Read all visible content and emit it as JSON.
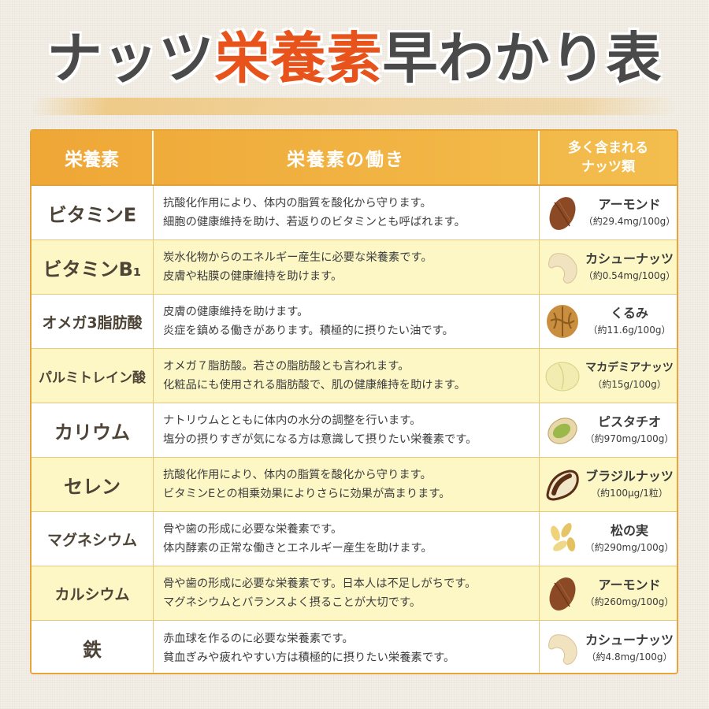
{
  "title": {
    "part1": "ナッツ",
    "part2": "栄養素",
    "part3": "早わかり表"
  },
  "headers": {
    "nutrient": "栄養素",
    "function": "栄養素の働き",
    "nuts_line1": "多く含まれる",
    "nuts_line2": "ナッツ類"
  },
  "rows": [
    {
      "nutrient": "ビタミンE",
      "line1": "抗酸化作用により、体内の脂質を酸化から守ります。",
      "line2": "細胞の健康維持を助け、若返りのビタミンとも呼ばれます。",
      "nut": "アーモンド",
      "amount": "（約29.4mg/100g）",
      "icon": "almond-icon"
    },
    {
      "nutrient": "ビタミンB₁",
      "line1": "炭水化物からのエネルギー産生に必要な栄養素です。",
      "line2": "皮膚や粘膜の健康維持を助けます。",
      "nut": "カシューナッツ",
      "amount": "（約0.54mg/100g）",
      "icon": "cashew-icon"
    },
    {
      "nutrient": "オメガ3脂肪酸",
      "line1": "皮膚の健康維持を助けます。",
      "line2": "炎症を鎮める働きがあります。積極的に摂りたい油です。",
      "nut": "くるみ",
      "amount": "（約11.6g/100g）",
      "icon": "walnut-icon"
    },
    {
      "nutrient": "パルミトレイン酸",
      "line1": "オメガ７脂肪酸。若さの脂肪酸とも言われます。",
      "line2": "化粧品にも使用される脂肪酸で、肌の健康維持を助けます。",
      "nut": "マカデミアナッツ",
      "amount": "（約15g/100g）",
      "icon": "macadamia-icon"
    },
    {
      "nutrient": "カリウム",
      "line1": "ナトリウムとともに体内の水分の調整を行います。",
      "line2": "塩分の摂りすぎが気になる方は意識して摂りたい栄養素です。",
      "nut": "ピスタチオ",
      "amount": "（約970mg/100g）",
      "icon": "pistachio-icon"
    },
    {
      "nutrient": "セレン",
      "line1": "抗酸化作用により、体内の脂質を酸化から守ります。",
      "line2": "ビタミンEとの相乗効果によりさらに効果が高まります。",
      "nut": "ブラジルナッツ",
      "amount": "（約100μg/1粒）",
      "icon": "brazil-nut-icon"
    },
    {
      "nutrient": "マグネシウム",
      "line1": "骨や歯の形成に必要な栄養素です。",
      "line2": "体内酵素の正常な働きとエネルギー産生を助けます。",
      "nut": "松の実",
      "amount": "（約290mg/100g）",
      "icon": "pine-nut-icon"
    },
    {
      "nutrient": "カルシウム",
      "line1": "骨や歯の形成に必要な栄養素です。日本人は不足しがちです。",
      "line2": "マグネシウムとバランスよく摂ることが大切です。",
      "nut": "アーモンド",
      "amount": "（約260mg/100g）",
      "icon": "almond-icon"
    },
    {
      "nutrient": "鉄",
      "line1": "赤血球を作るのに必要な栄養素です。",
      "line2": "貧血ぎみや疲れやすい方は積極的に摂りたい栄養素です。",
      "nut": "カシューナッツ",
      "amount": "（約4.8mg/100g）",
      "icon": "cashew-icon"
    }
  ],
  "colors": {
    "accent": "#e8531c",
    "header": "#efa736",
    "row_alt": "#fdf7c6",
    "border": "#e7a63a"
  }
}
